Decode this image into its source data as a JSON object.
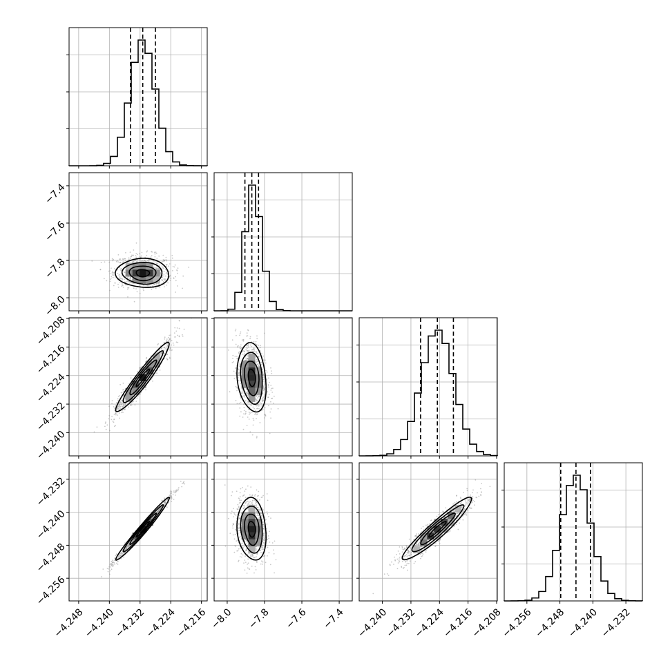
{
  "chart_data": {
    "type": "corner",
    "title": "",
    "variables": [
      {
        "index": 0,
        "range": [
          -4.2505,
          -4.2145
        ],
        "ticks": [
          -4.248,
          -4.24,
          -4.232,
          -4.224,
          -4.216
        ],
        "tick_labels": [
          "−4.248",
          "−4.240",
          "−4.232",
          "−4.224",
          "−4.216"
        ],
        "quantiles": [
          -4.2345,
          -4.2313,
          -4.228
        ],
        "median": -4.2313,
        "sigma": 0.0033
      },
      {
        "index": 1,
        "range": [
          -8.07,
          -7.33
        ],
        "ticks": [
          -8.0,
          -7.8,
          -7.6,
          -7.4
        ],
        "tick_labels": [
          "−8.0",
          "−7.8",
          "−7.6",
          "−7.4"
        ],
        "quantiles": [
          -7.905,
          -7.868,
          -7.832
        ],
        "median": -7.868,
        "sigma": 0.037
      },
      {
        "index": 2,
        "range": [
          -4.2465,
          -4.2078
        ],
        "ticks": [
          -4.24,
          -4.232,
          -4.224,
          -4.216,
          -4.208
        ],
        "tick_labels": [
          "−4.240",
          "−4.232",
          "−4.224",
          "−4.216",
          "−4.208"
        ],
        "quantiles": [
          -4.2293,
          -4.2246,
          -4.2201
        ],
        "median": -4.2246,
        "sigma": 0.0046
      },
      {
        "index": 3,
        "range": [
          -4.2615,
          -4.228
        ],
        "ticks": [
          -4.256,
          -4.248,
          -4.24,
          -4.232
        ],
        "tick_labels": [
          "−4.256",
          "−4.248",
          "−4.240",
          "−4.232"
        ],
        "quantiles": [
          -4.2478,
          -4.2441,
          -4.2406
        ],
        "median": -4.2441,
        "sigma": 0.0036
      }
    ],
    "correlations": [
      {
        "pair": [
          0,
          1
        ],
        "rho": -0.05
      },
      {
        "pair": [
          0,
          2
        ],
        "rho": 0.95
      },
      {
        "pair": [
          0,
          3
        ],
        "rho": 0.99
      },
      {
        "pair": [
          1,
          2
        ],
        "rho": -0.2
      },
      {
        "pair": [
          1,
          3
        ],
        "rho": -0.15
      },
      {
        "pair": [
          2,
          3
        ],
        "rho": 0.94
      }
    ],
    "histogram_bins": 20,
    "quantile_levels": [
      0.16,
      0.5,
      0.84
    ],
    "contour_levels_sigma": [
      0.5,
      1.0,
      1.5,
      2.0
    ],
    "grid": true,
    "colors": {
      "line": "#000000",
      "scatter": "#9a9a9a",
      "grid": "#b0b0b0"
    }
  }
}
